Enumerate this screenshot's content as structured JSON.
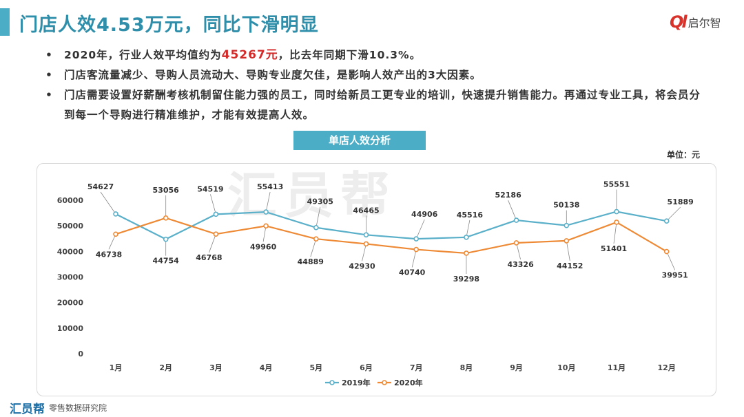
{
  "header": {
    "title": "门店人效4.53万元，同比下滑明显",
    "logo_mark": "Ql",
    "logo_text": "启尔智"
  },
  "bullets": {
    "b1_pre": "2020年，行业人效平均值约为",
    "b1_highlight": "45267元",
    "b1_post": "，比去年同期下滑10.3%。",
    "b2": "门店客流量减少、导购人员流动大、导购专业度欠佳，是影响人效产出的3大因素。",
    "b3": "门店需要设置好薪酬考核机制留住能力强的员工，同时给新员工更专业的培训，快速提升销售能力。再通过专业工具，将会员分到每一个导购进行精准维护，才能有效提高人效。",
    "marker": "•"
  },
  "chart_title": "单店人效分析",
  "unit_label": "单位：元",
  "watermark": "汇员帮",
  "footer": {
    "logo": "汇员帮",
    "text": "零售数据研究院"
  },
  "colors": {
    "accent": "#4badc6",
    "title": "#2f8fab",
    "series_2019": "#5aafc9",
    "series_2020": "#ee8a35",
    "highlight": "#d32a2a"
  },
  "chart_data": {
    "type": "line",
    "title": "单店人效分析",
    "categories": [
      "1月",
      "2月",
      "3月",
      "4月",
      "5月",
      "6月",
      "7月",
      "8月",
      "9月",
      "10月",
      "11月",
      "12月"
    ],
    "series": [
      {
        "name": "2019年",
        "color": "#5aafc9",
        "values": [
          54627,
          44754,
          54519,
          55413,
          49305,
          46465,
          44906,
          45516,
          52186,
          50138,
          55551,
          51889
        ]
      },
      {
        "name": "2020年",
        "color": "#ee8a35",
        "values": [
          46738,
          53056,
          46768,
          49960,
          44889,
          42930,
          40740,
          39298,
          43326,
          44152,
          51401,
          39951
        ]
      }
    ],
    "ylim": [
      0,
      60000
    ],
    "yticks": [
      0,
      10000,
      20000,
      30000,
      40000,
      50000,
      60000
    ],
    "grid": false,
    "legend": "bottom"
  }
}
